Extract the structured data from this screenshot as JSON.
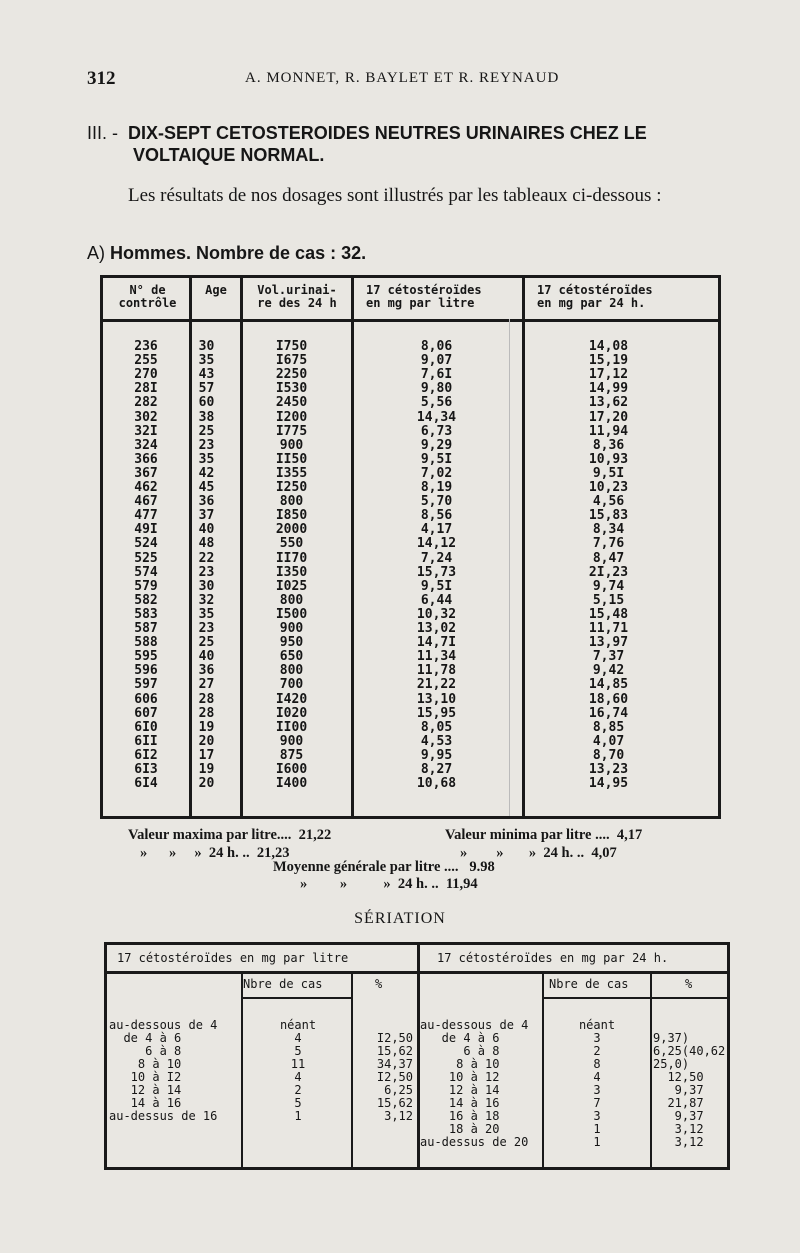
{
  "header": {
    "page_number": "312",
    "authors": "A. MONNET, R. BAYLET ET R. REYNAUD"
  },
  "section": {
    "number": "III. -",
    "title_line1": "DIX-SEPT CETOSTEROIDES NEUTRES URINAIRES CHEZ LE",
    "title_line2": "VOLTAIQUE NORMAL."
  },
  "intro": "Les résultats de nos dosages sont illustrés par les tableaux ci-dessous :",
  "subheading": {
    "label": "A) ",
    "text": "Hommes. Nombre de cas : 32."
  },
  "main_table": {
    "headers": [
      "N° de\ncontrôle",
      "Age",
      "Vol.urinai-\nre des 24 h",
      "17 cétostéroïdes\nen mg par litre",
      "17 cétostéroïdes\nen mg par 24 h."
    ],
    "rows": [
      [
        "236",
        "30",
        "I750",
        "8,06",
        "14,08"
      ],
      [
        "255",
        "35",
        "I675",
        "9,07",
        "15,19"
      ],
      [
        "270",
        "43",
        "2250",
        "7,6I",
        "17,12"
      ],
      [
        "28I",
        "57",
        "I530",
        "9,80",
        "14,99"
      ],
      [
        "282",
        "60",
        "2450",
        "5,56",
        "13,62"
      ],
      [
        "302",
        "38",
        "I200",
        "14,34",
        "17,20"
      ],
      [
        "32I",
        "25",
        "I775",
        "6,73",
        "11,94"
      ],
      [
        "324",
        "23",
        "900",
        "9,29",
        "8,36"
      ],
      [
        "366",
        "35",
        "II50",
        "9,5I",
        "10,93"
      ],
      [
        "367",
        "42",
        "I355",
        "7,02",
        "9,5I"
      ],
      [
        "462",
        "45",
        "I250",
        "8,19",
        "10,23"
      ],
      [
        "467",
        "36",
        "800",
        "5,70",
        "4,56"
      ],
      [
        "477",
        "37",
        "I850",
        "8,56",
        "15,83"
      ],
      [
        "49I",
        "40",
        "2000",
        "4,17",
        "8,34"
      ],
      [
        "524",
        "48",
        "550",
        "14,12",
        "7,76"
      ],
      [
        "525",
        "22",
        "II70",
        "7,24",
        "8,47"
      ],
      [
        "574",
        "23",
        "I350",
        "15,73",
        "2I,23"
      ],
      [
        "579",
        "30",
        "I025",
        "9,5I",
        "9,74"
      ],
      [
        "582",
        "32",
        "800",
        "6,44",
        "5,15"
      ],
      [
        "583",
        "35",
        "I500",
        "10,32",
        "15,48"
      ],
      [
        "587",
        "23",
        "900",
        "13,02",
        "11,71"
      ],
      [
        "588",
        "25",
        "950",
        "14,7I",
        "13,97"
      ],
      [
        "595",
        "40",
        "650",
        "11,34",
        "7,37"
      ],
      [
        "596",
        "36",
        "800",
        "11,78",
        "9,42"
      ],
      [
        "597",
        "27",
        "700",
        "21,22",
        "14,85"
      ],
      [
        "606",
        "28",
        "I420",
        "13,10",
        "18,60"
      ],
      [
        "607",
        "28",
        "I020",
        "15,95",
        "16,74"
      ],
      [
        "6I0",
        "19",
        "II00",
        "8,05",
        "8,85"
      ],
      [
        "6II",
        "20",
        "900",
        "4,53",
        "4,07"
      ],
      [
        "6I2",
        "17",
        "875",
        "9,95",
        "8,70"
      ],
      [
        "6I3",
        "19",
        "I600",
        "8,27",
        "13,23"
      ],
      [
        "6I4",
        "20",
        "I400",
        "10,68",
        "14,95"
      ]
    ]
  },
  "stats": {
    "max_litre": "Valeur maxima par litre....  21,22",
    "max_24h": "»      »     »  24 h. ..  21,23",
    "min_litre": "Valeur minima par litre ....  4,17",
    "min_24h": "»        »       »  24 h. ..  4,07",
    "mean_litre": "Moyenne générale par litre ....   9.98",
    "mean_24h": "»         »          »  24 h. ..  11,94"
  },
  "seriation": {
    "title": "SÉRIATION",
    "left": {
      "header": "17 cétostéroïdes en mg par litre",
      "col_count": "Nbre de cas",
      "col_pct": "%",
      "ranges": "au-dessous de 4\n  de 4 à 6\n     6 à 8\n    8 à 10\n   10 à I2\n   12 à 14\n   14 à 16\nau-dessus de 16",
      "counts": "néant\n4\n5\n11\n4\n2\n5\n1",
      "pcts": "\nI2,50\n15,62\n34,37\nI2,50\n 6,25\n15,62\n 3,12"
    },
    "right": {
      "header": "17 cétostéroïdes en mg par 24 h.",
      "col_count": "Nbre de cas",
      "col_pct": "%",
      "ranges": "au-dessous de 4\n   de 4 à 6\n      6 à 8\n     8 à 10\n    10 à 12\n    12 à 14\n    14 à 16\n    16 à 18\n    18 à 20\nau-dessus de 20",
      "counts": "néant\n3\n2\n8\n4\n3\n7\n3\n1\n1",
      "pcts": "\n9,37)\n6,25(40,62\n25,0)\n  12,50\n   9,37\n  21,87\n   9,37\n   3,12\n   3,12"
    }
  }
}
